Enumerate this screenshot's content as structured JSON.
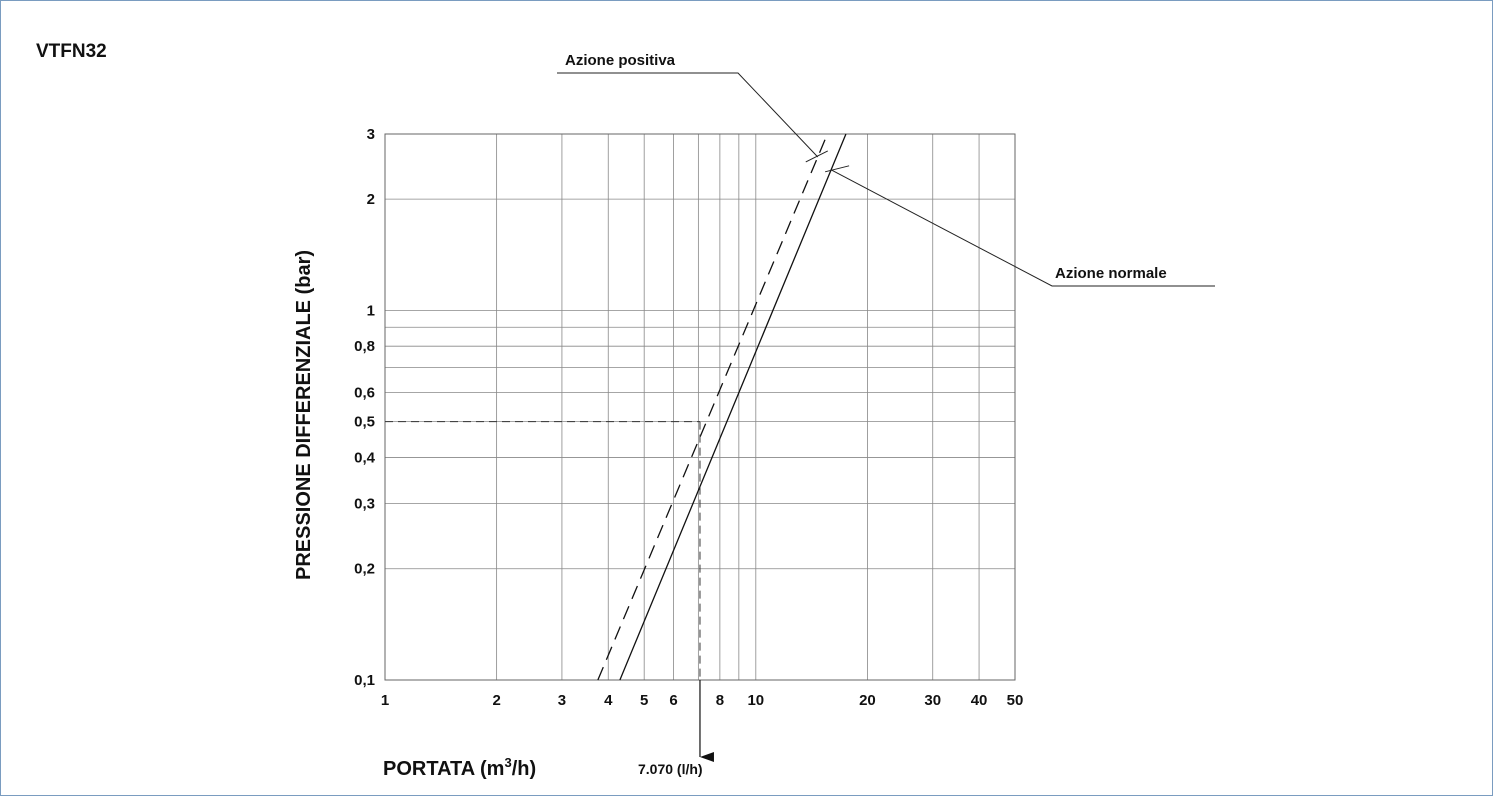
{
  "page_title": "VTFN32",
  "chart_data": {
    "type": "line",
    "title": "VTFN32",
    "xlabel": "PORTATA (m",
    "xlabel_sup": "3",
    "xlabel_tail": "/h)",
    "ylabel": "PRESSIONE DIFFERENZIALE (bar)",
    "x_scale": "log",
    "y_scale": "log",
    "xlim": [
      1,
      50
    ],
    "ylim": [
      0.1,
      3
    ],
    "grid": true,
    "x_ticks": [
      {
        "v": 1,
        "label": "1"
      },
      {
        "v": 2,
        "label": "2"
      },
      {
        "v": 3,
        "label": "3"
      },
      {
        "v": 4,
        "label": "4"
      },
      {
        "v": 5,
        "label": "5"
      },
      {
        "v": 6,
        "label": "6"
      },
      {
        "v": 8,
        "label": "8"
      },
      {
        "v": 10,
        "label": "10"
      },
      {
        "v": 20,
        "label": "20"
      },
      {
        "v": 30,
        "label": "30"
      },
      {
        "v": 40,
        "label": "40"
      },
      {
        "v": 50,
        "label": "50"
      }
    ],
    "x_gridlines": [
      1,
      2,
      3,
      4,
      5,
      6,
      7,
      8,
      9,
      10,
      20,
      30,
      40,
      50
    ],
    "y_ticks": [
      {
        "v": 0.1,
        "label": "0,1"
      },
      {
        "v": 0.2,
        "label": "0,2"
      },
      {
        "v": 0.3,
        "label": "0,3"
      },
      {
        "v": 0.4,
        "label": "0,4"
      },
      {
        "v": 0.5,
        "label": "0,5"
      },
      {
        "v": 0.6,
        "label": "0,6"
      },
      {
        "v": 0.8,
        "label": "0,8"
      },
      {
        "v": 1,
        "label": "1"
      },
      {
        "v": 2,
        "label": "2"
      },
      {
        "v": 3,
        "label": "3"
      }
    ],
    "y_gridlines": [
      0.1,
      0.2,
      0.3,
      0.4,
      0.5,
      0.6,
      0.7,
      0.8,
      0.9,
      1,
      2,
      3
    ],
    "series": [
      {
        "name": "Azione normale",
        "style": "solid",
        "x": [
          4.3,
          17.5
        ],
        "y": [
          0.1,
          3
        ]
      },
      {
        "name": "Azione positiva",
        "style": "dashed",
        "x": [
          3.75,
          15.6
        ],
        "y": [
          0.1,
          3
        ]
      }
    ],
    "reference": {
      "x": 7.07,
      "y": 0.5,
      "label": "7.070 (l/h)"
    }
  }
}
